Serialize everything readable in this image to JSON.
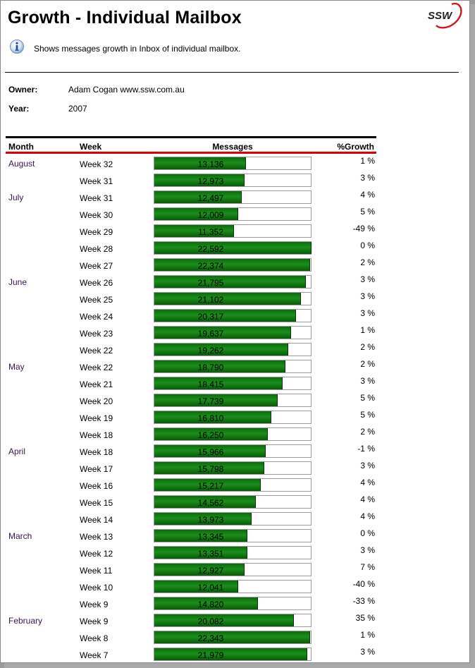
{
  "report": {
    "title": "Growth - Individual Mailbox",
    "description": "Shows messages growth in Inbox of individual mailbox.",
    "logo_text": "SSW",
    "owner_label": "Owner:",
    "owner_value": "Adam Cogan www.ssw.com.au",
    "year_label": "Year:",
    "year_value": "2007"
  },
  "table": {
    "headers": {
      "month": "Month",
      "week": "Week",
      "messages": "Messages",
      "growth": "%Growth"
    },
    "max_messages": 22592,
    "rows": [
      {
        "month": "August",
        "week": "Week 32",
        "messages": "13,136",
        "value": 13136,
        "growth": "1 %"
      },
      {
        "month": "",
        "week": "Week 31",
        "messages": "12,973",
        "value": 12973,
        "growth": "3 %"
      },
      {
        "month": "July",
        "week": "Week 31",
        "messages": "12,497",
        "value": 12497,
        "growth": "4 %"
      },
      {
        "month": "",
        "week": "Week 30",
        "messages": "12,009",
        "value": 12009,
        "growth": "5 %"
      },
      {
        "month": "",
        "week": "Week 29",
        "messages": "11,352",
        "value": 11352,
        "growth": "-49 %"
      },
      {
        "month": "",
        "week": "Week 28",
        "messages": "22,592",
        "value": 22592,
        "growth": "0 %"
      },
      {
        "month": "",
        "week": "Week 27",
        "messages": "22,374",
        "value": 22374,
        "growth": "2 %"
      },
      {
        "month": "June",
        "week": "Week 26",
        "messages": "21,795",
        "value": 21795,
        "growth": "3 %"
      },
      {
        "month": "",
        "week": "Week 25",
        "messages": "21,102",
        "value": 21102,
        "growth": "3 %"
      },
      {
        "month": "",
        "week": "Week 24",
        "messages": "20,317",
        "value": 20317,
        "growth": "3 %"
      },
      {
        "month": "",
        "week": "Week 23",
        "messages": "19,637",
        "value": 19637,
        "growth": "1 %"
      },
      {
        "month": "",
        "week": "Week 22",
        "messages": "19,262",
        "value": 19262,
        "growth": "2 %"
      },
      {
        "month": "May",
        "week": "Week 22",
        "messages": "18,790",
        "value": 18790,
        "growth": "2 %"
      },
      {
        "month": "",
        "week": "Week 21",
        "messages": "18,415",
        "value": 18415,
        "growth": "3 %"
      },
      {
        "month": "",
        "week": "Week 20",
        "messages": "17,739",
        "value": 17739,
        "growth": "5 %"
      },
      {
        "month": "",
        "week": "Week 19",
        "messages": "16,810",
        "value": 16810,
        "growth": "5 %"
      },
      {
        "month": "",
        "week": "Week 18",
        "messages": "16,250",
        "value": 16250,
        "growth": "2 %"
      },
      {
        "month": "April",
        "week": "Week 18",
        "messages": "15,966",
        "value": 15966,
        "growth": "-1 %"
      },
      {
        "month": "",
        "week": "Week 17",
        "messages": "15,798",
        "value": 15798,
        "growth": "3 %"
      },
      {
        "month": "",
        "week": "Week 16",
        "messages": "15,217",
        "value": 15217,
        "growth": "4 %"
      },
      {
        "month": "",
        "week": "Week 15",
        "messages": "14,562",
        "value": 14562,
        "growth": "4 %"
      },
      {
        "month": "",
        "week": "Week 14",
        "messages": "13,973",
        "value": 13973,
        "growth": "4 %"
      },
      {
        "month": "March",
        "week": "Week 13",
        "messages": "13,345",
        "value": 13345,
        "growth": "0 %"
      },
      {
        "month": "",
        "week": "Week 12",
        "messages": "13,351",
        "value": 13351,
        "growth": "3 %"
      },
      {
        "month": "",
        "week": "Week 11",
        "messages": "12,927",
        "value": 12927,
        "growth": "7 %"
      },
      {
        "month": "",
        "week": "Week 10",
        "messages": "12,041",
        "value": 12041,
        "growth": "-40 %"
      },
      {
        "month": "",
        "week": "Week 9",
        "messages": "14,820",
        "value": 14820,
        "growth": "-33 %"
      },
      {
        "month": "February",
        "week": "Week 9",
        "messages": "20,082",
        "value": 20082,
        "growth": "35 %"
      },
      {
        "month": "",
        "week": "Week 8",
        "messages": "22,343",
        "value": 22343,
        "growth": "1 %"
      },
      {
        "month": "",
        "week": "Week 7",
        "messages": "21,979",
        "value": 21979,
        "growth": "3 %"
      }
    ]
  },
  "colors": {
    "bar": "#1a8f1a",
    "header_rule": "#e00000",
    "month_text": "#3a1550"
  },
  "icons": {
    "info": "info-icon",
    "logo": "ssw-logo"
  }
}
